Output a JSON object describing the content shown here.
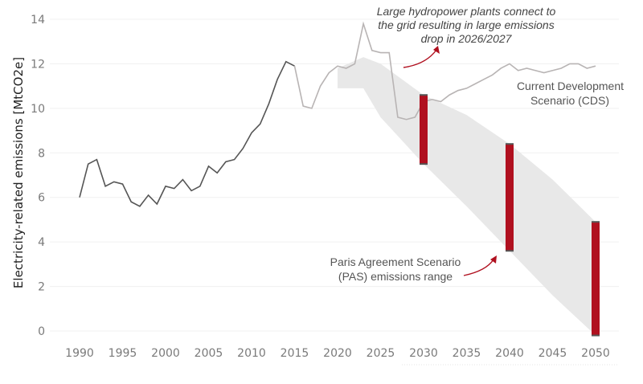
{
  "chart_data": {
    "type": "line",
    "title": "",
    "xlabel": "",
    "ylabel": "Electricity-related emissions [MtCO2e]",
    "xlim": [
      1990,
      2050
    ],
    "ylim": [
      0,
      14
    ],
    "xticks": [
      "1990",
      "1995",
      "2000",
      "2005",
      "2010",
      "2015",
      "2020",
      "2025",
      "2030",
      "2035",
      "2040",
      "2045",
      "2050"
    ],
    "yticks": [
      "0",
      "2",
      "4",
      "6",
      "8",
      "10",
      "12",
      "14"
    ],
    "grid": "horizontal",
    "colors": {
      "historical": "#555555",
      "cds": "#b8b4b4",
      "pas_band": "#e8e8e8",
      "pas_bar": "#b0101f",
      "arrow": "#b0101f"
    },
    "series": [
      {
        "role": "historical",
        "x": [
          1990,
          1991,
          1992,
          1993,
          1994,
          1995,
          1996,
          1997,
          1998,
          1999,
          2000,
          2001,
          2002,
          2003,
          2004,
          2005,
          2006,
          2007,
          2008,
          2009,
          2010,
          2011,
          2012,
          2013,
          2014,
          2015
        ],
        "values": [
          6.0,
          7.5,
          7.7,
          6.5,
          6.7,
          6.6,
          5.8,
          5.6,
          6.1,
          5.7,
          6.5,
          6.4,
          6.8,
          6.3,
          6.5,
          7.4,
          7.1,
          7.6,
          7.7,
          8.2,
          8.9,
          9.3,
          10.2,
          11.3,
          12.1,
          11.9
        ]
      },
      {
        "name": "Current Development Scenario (CDS)",
        "role": "cds",
        "x": [
          2015,
          2016,
          2017,
          2018,
          2019,
          2020,
          2021,
          2022,
          2023,
          2024,
          2025,
          2026,
          2027,
          2028,
          2029,
          2030,
          2031,
          2032,
          2033,
          2034,
          2035,
          2036,
          2037,
          2038,
          2039,
          2040,
          2041,
          2042,
          2043,
          2044,
          2045,
          2046,
          2047,
          2048,
          2049,
          2050
        ],
        "values": [
          11.9,
          10.1,
          10.0,
          11.0,
          11.6,
          11.9,
          11.8,
          12.0,
          13.8,
          12.6,
          12.5,
          12.5,
          9.6,
          9.5,
          9.6,
          10.3,
          10.4,
          10.3,
          10.6,
          10.8,
          10.9,
          11.1,
          11.3,
          11.5,
          11.8,
          12.0,
          11.7,
          11.8,
          11.7,
          11.6,
          11.7,
          11.8,
          12.0,
          12.0,
          11.8,
          11.9
        ]
      }
    ],
    "pas_band": {
      "x": [
        2020,
        2023,
        2025,
        2030,
        2035,
        2040,
        2045,
        2050
      ],
      "upper": [
        11.8,
        12.3,
        12.0,
        10.6,
        9.7,
        8.4,
        6.8,
        4.9
      ],
      "lower": [
        10.9,
        10.9,
        9.6,
        7.5,
        5.6,
        3.6,
        1.6,
        -0.2
      ]
    },
    "pas_ranges": [
      {
        "x": 2030,
        "min": 7.5,
        "max": 10.6
      },
      {
        "x": 2040,
        "min": 3.6,
        "max": 8.4
      },
      {
        "x": 2050,
        "min": -0.2,
        "max": 4.9
      }
    ],
    "annotations": {
      "hydro": [
        "Large hydropower plants connect to",
        "the grid resulting in large emissions",
        "drop in 2026/2027"
      ],
      "cds": [
        "Current Development",
        "Scenario (CDS)"
      ],
      "pas": [
        "Paris Agreement Scenario",
        "(PAS) emissions range"
      ]
    }
  }
}
